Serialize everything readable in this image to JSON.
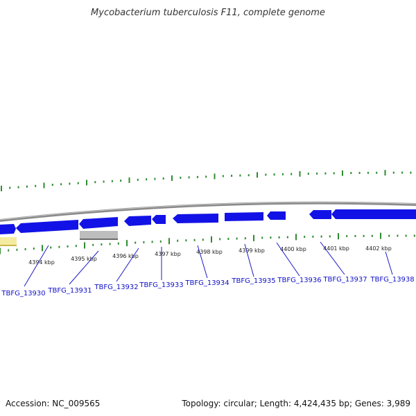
{
  "title": "Mycobacterium tuberculosis F11, complete genome",
  "footer": {
    "accession": "Accession: NC_009565",
    "summary": "Topology: circular; Length: 4,424,435 bp; Genes: 3,989"
  },
  "colors": {
    "cds": "#1212e6",
    "pseudo_gene": "#f5eba0",
    "rna_gene": "#bdbdbd",
    "backbone": "#8a8a8a",
    "ticks": "#2e8b2e",
    "label_line": "#1a1ac8"
  },
  "kbp_labels": [
    "4394 kbp",
    "4395 kbp",
    "4396 kbp",
    "4397 kbp",
    "4398 kbp",
    "4399 kbp",
    "4400 kbp",
    "4401 kbp",
    "4402 kbp"
  ],
  "gene_labels": [
    "TBFG_13930",
    "TBFG_13931",
    "TBFG_13932",
    "TBFG_13933",
    "TBFG_13934",
    "TBFG_13935",
    "TBFG_13936",
    "TBFG_13937",
    "TBFG_13938"
  ]
}
